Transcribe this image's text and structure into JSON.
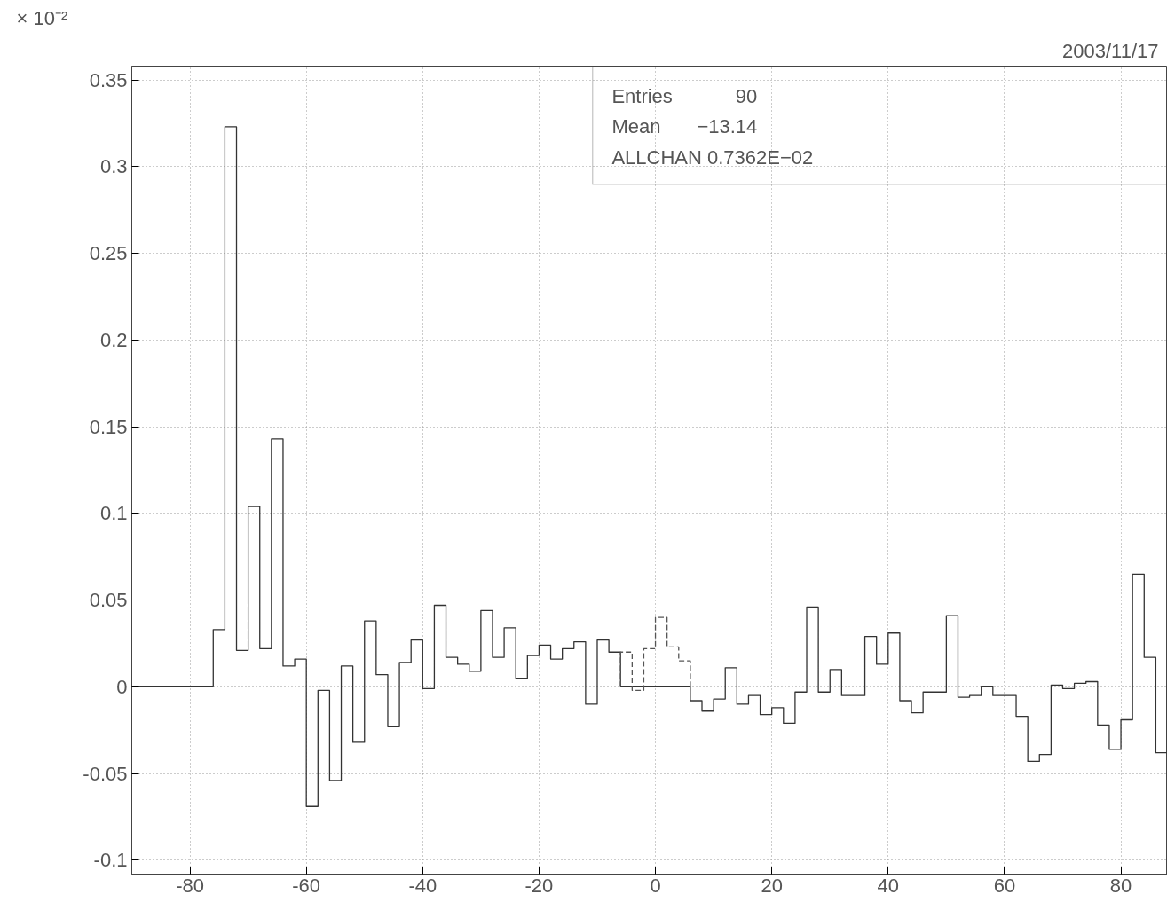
{
  "chart_data": {
    "type": "histogram",
    "ylabel": "× 10⁻²",
    "annotations": [
      "2003/11/17",
      "Entries 90",
      "Mean −13.14",
      "ALLCHAN 0.7362E−02"
    ],
    "bins": [
      -90,
      -88,
      -86,
      -84,
      -82,
      -80,
      -78,
      -76,
      -74,
      -72,
      -70,
      -68,
      -66,
      -64,
      -62,
      -60,
      -58,
      -56,
      -54,
      -52,
      -50,
      -48,
      -46,
      -44,
      -42,
      -40,
      -38,
      -36,
      -34,
      -32,
      -30,
      -28,
      -26,
      -24,
      -22,
      -20,
      -18,
      -16,
      -14,
      -12,
      -10,
      -8,
      -6,
      -4,
      -2,
      0,
      2,
      4,
      6,
      8,
      10,
      12,
      14,
      16,
      18,
      20,
      22,
      24,
      26,
      28,
      30,
      32,
      34,
      36,
      38,
      40,
      42,
      44,
      46,
      48,
      50,
      52,
      54,
      56,
      58,
      60,
      62,
      64,
      66,
      68,
      70,
      72,
      74,
      76,
      78,
      80,
      82,
      84,
      86,
      88
    ],
    "series": [
      {
        "color": "#333333",
        "line_style": "solid",
        "values": [
          0,
          0,
          0,
          0,
          0,
          0,
          0,
          0.033,
          0.323,
          0.021,
          0.104,
          0.022,
          0.143,
          0.012,
          0.016,
          -0.069,
          -0.002,
          -0.054,
          0.012,
          -0.032,
          0.038,
          0.007,
          -0.023,
          0.014,
          0.027,
          -0.001,
          0.047,
          0.017,
          0.013,
          0.009,
          0.044,
          0.017,
          0.034,
          0.005,
          0.018,
          0.024,
          0.016,
          0.022,
          0.026,
          -0.01,
          0.027,
          0.02,
          0,
          0,
          0,
          0,
          0,
          0,
          -0.008,
          -0.014,
          -0.007,
          0.011,
          -0.01,
          -0.005,
          -0.016,
          -0.012,
          -0.021,
          -0.003,
          0.046,
          -0.003,
          0.01,
          -0.005,
          -0.005,
          0.029,
          0.013,
          0.031,
          -0.008,
          -0.015,
          -0.003,
          -0.003,
          0.041,
          -0.006,
          -0.005,
          0,
          -0.005,
          -0.005,
          -0.017,
          -0.043,
          -0.039,
          0.001,
          -0.001,
          0.002,
          0.003,
          -0.022,
          -0.036,
          -0.019,
          0.065,
          0.017,
          -0.038
        ]
      },
      {
        "color": "#555555",
        "line_style": "dashed",
        "bins": [
          -6,
          -4,
          -2,
          0,
          2,
          4,
          6
        ],
        "values": [
          0.02,
          -0.002,
          0.022,
          0.04,
          0.023,
          0.015
        ]
      }
    ],
    "xlim": [
      -90,
      88
    ],
    "ylim": [
      -0.108,
      0.358
    ],
    "xticks": [
      -80,
      -60,
      -40,
      -20,
      0,
      20,
      40,
      60,
      80
    ],
    "yticks": [
      -0.1,
      -0.05,
      0,
      0.05,
      0.1,
      0.15,
      0.2,
      0.25,
      0.3,
      0.35
    ],
    "grid": true
  }
}
